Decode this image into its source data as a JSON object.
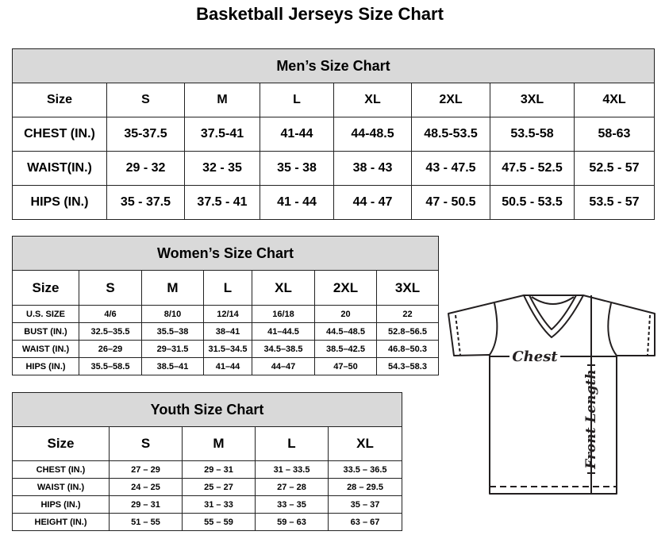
{
  "title": "Basketball Jerseys Size Chart",
  "tables": {
    "men": {
      "caption": "Men’s Size Chart",
      "header": [
        "Size",
        "S",
        "M",
        "L",
        "XL",
        "2XL",
        "3XL",
        "4XL"
      ],
      "rows": [
        [
          "CHEST (IN.)",
          "35-37.5",
          "37.5-41",
          "41-44",
          "44-48.5",
          "48.5-53.5",
          "53.5-58",
          "58-63"
        ],
        [
          "WAIST(IN.)",
          "29 - 32",
          "32 - 35",
          "35 - 38",
          "38 - 43",
          "43 - 47.5",
          "47.5 - 52.5",
          "52.5 - 57"
        ],
        [
          "HIPS (IN.)",
          "35 - 37.5",
          "37.5 - 41",
          "41 - 44",
          "44 - 47",
          "47 - 50.5",
          "50.5 - 53.5",
          "53.5 - 57"
        ]
      ]
    },
    "women": {
      "caption": "Women’s Size Chart",
      "header": [
        "Size",
        "S",
        "M",
        "L",
        "XL",
        "2XL",
        "3XL"
      ],
      "rows": [
        [
          "U.S. SIZE",
          "4/6",
          "8/10",
          "12/14",
          "16/18",
          "20",
          "22"
        ],
        [
          "BUST (IN.)",
          "32.5–35.5",
          "35.5–38",
          "38–41",
          "41–44.5",
          "44.5–48.5",
          "52.8–56.5"
        ],
        [
          "WAIST (IN.)",
          "26–29",
          "29–31.5",
          "31.5–34.5",
          "34.5–38.5",
          "38.5–42.5",
          "46.8–50.3"
        ],
        [
          "HIPS (IN.)",
          "35.5–58.5",
          "38.5–41",
          "41–44",
          "44–47",
          "47–50",
          "54.3–58.3"
        ]
      ]
    },
    "youth": {
      "caption": "Youth Size Chart",
      "header": [
        "Size",
        "S",
        "M",
        "L",
        "XL"
      ],
      "rows": [
        [
          "CHEST (IN.)",
          "27 – 29",
          "29 – 31",
          "31 – 33.5",
          "33.5 – 36.5"
        ],
        [
          "WAIST (IN.)",
          "24 – 25",
          "25 – 27",
          "27 – 28",
          "28 – 29.5"
        ],
        [
          "HIPS (IN.)",
          "29 – 31",
          "31 – 33",
          "33 – 35",
          "35 – 37"
        ],
        [
          "HEIGHT (IN.)",
          "51 – 55",
          "55 – 59",
          "59 – 63",
          "63 – 67"
        ]
      ]
    }
  },
  "diagram": {
    "chest_label": "Chest",
    "length_label": "Front Length",
    "icon": "t-shirt-measurement-icon"
  },
  "colors": {
    "caption_bg": "#d9d9d9",
    "line": "#231f20"
  }
}
